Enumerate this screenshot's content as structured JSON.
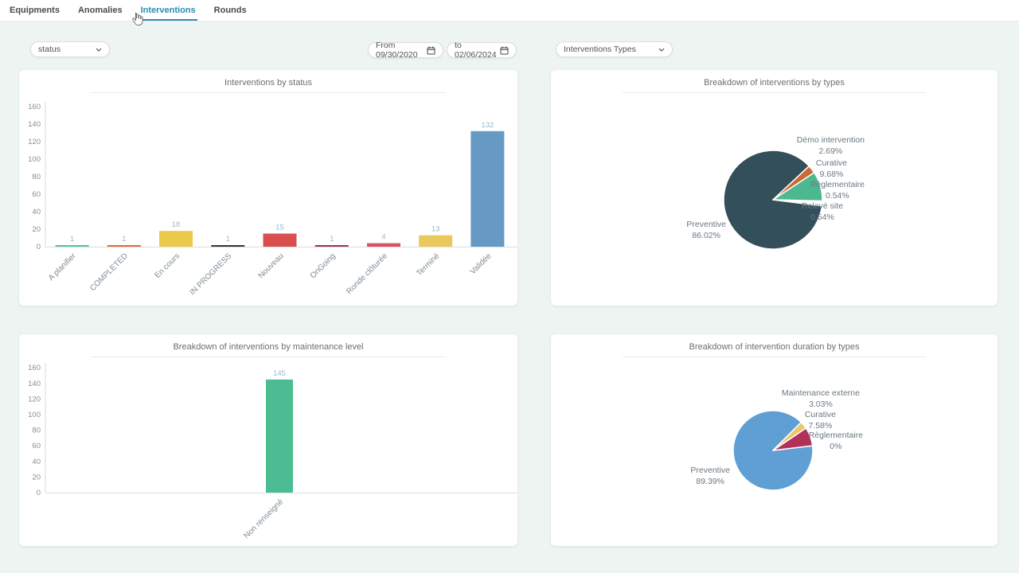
{
  "tabs": [
    {
      "label": "Equipments",
      "active": false
    },
    {
      "label": "Anomalies",
      "active": false
    },
    {
      "label": "Interventions",
      "active": true
    },
    {
      "label": "Rounds",
      "active": false
    }
  ],
  "filters": {
    "status_dropdown": "status",
    "date_from": "From 09/30/2020",
    "date_to": "to 02/06/2024",
    "types_dropdown": "Interventions Types"
  },
  "colors": {
    "background": "#edf4f2",
    "active_tab": "#2d8cae",
    "value_label": "#94bbd6",
    "axis_text": "#828f99",
    "axis_line": "#d7dcdf"
  },
  "chart_data": [
    {
      "type": "bar",
      "title": "Interventions by status",
      "categories": [
        "A planifier",
        "COMPLETED",
        "En cours",
        "IN PROGRESS",
        "Nouveau",
        "OnGoing",
        "Ronde clôturée",
        "Terminé",
        "Validée"
      ],
      "values": [
        1,
        1,
        18,
        1,
        15,
        1,
        4,
        13,
        132
      ],
      "bar_colors": [
        "#56c2a0",
        "#dd6b3c",
        "#e9ca4a",
        "#35373b",
        "#d94f4f",
        "#993352",
        "#dd5060",
        "#e9c95c",
        "#6699c4"
      ],
      "xlabel": "",
      "ylabel": "",
      "ylim": [
        0,
        160
      ],
      "yticks": [
        0,
        20,
        40,
        60,
        80,
        100,
        120,
        140,
        160
      ],
      "grid": false,
      "legend": "none"
    },
    {
      "type": "pie",
      "title": "Breakdown of interventions by types",
      "slices": [
        {
          "label": "Preventive",
          "pct": 86.02,
          "pct_label": "86.02%",
          "color": "#334f59"
        },
        {
          "label": "Démo intervention",
          "pct": 2.69,
          "pct_label": "2.69%",
          "color": "#cb6a35"
        },
        {
          "label": "Curative",
          "pct": 9.68,
          "pct_label": "9.68%",
          "color": "#4cb890"
        },
        {
          "label": "Règlementaire",
          "pct": 0.54,
          "pct_label": "0.54%",
          "color": "#eef2f3"
        },
        {
          "label": "Relevé site",
          "pct": 0.54,
          "pct_label": "0.54%",
          "color": "#f3f5f6"
        }
      ],
      "start_angle": 97.3,
      "legend": "outside-labels"
    },
    {
      "type": "bar",
      "title": "Breakdown of interventions by maintenance level",
      "categories": [
        "Non renseigné"
      ],
      "values": [
        145
      ],
      "bar_colors": [
        "#4cbd92"
      ],
      "xlabel": "",
      "ylabel": "",
      "ylim": [
        0,
        160
      ],
      "yticks": [
        0,
        20,
        40,
        60,
        80,
        100,
        120,
        140,
        160
      ],
      "grid": false,
      "legend": "none"
    },
    {
      "type": "pie",
      "title": "Breakdown of intervention duration by types",
      "slices": [
        {
          "label": "Preventive",
          "pct": 89.39,
          "pct_label": "89.39%",
          "color": "#5f9fd3"
        },
        {
          "label": "Maintenance externe",
          "pct": 3.03,
          "pct_label": "3.03%",
          "color": "#e9c76c"
        },
        {
          "label": "Curative",
          "pct": 7.58,
          "pct_label": "7.58%",
          "color": "#b13159"
        },
        {
          "label": "Règlementaire",
          "pct": 0,
          "pct_label": "0%",
          "color": "#cccccc"
        }
      ],
      "start_angle": 83.2,
      "legend": "outside-labels"
    }
  ],
  "icons": {
    "calendar": "calendar-icon",
    "chevron": "chevron-down-icon",
    "cursor": "mouse-cursor-icon"
  }
}
